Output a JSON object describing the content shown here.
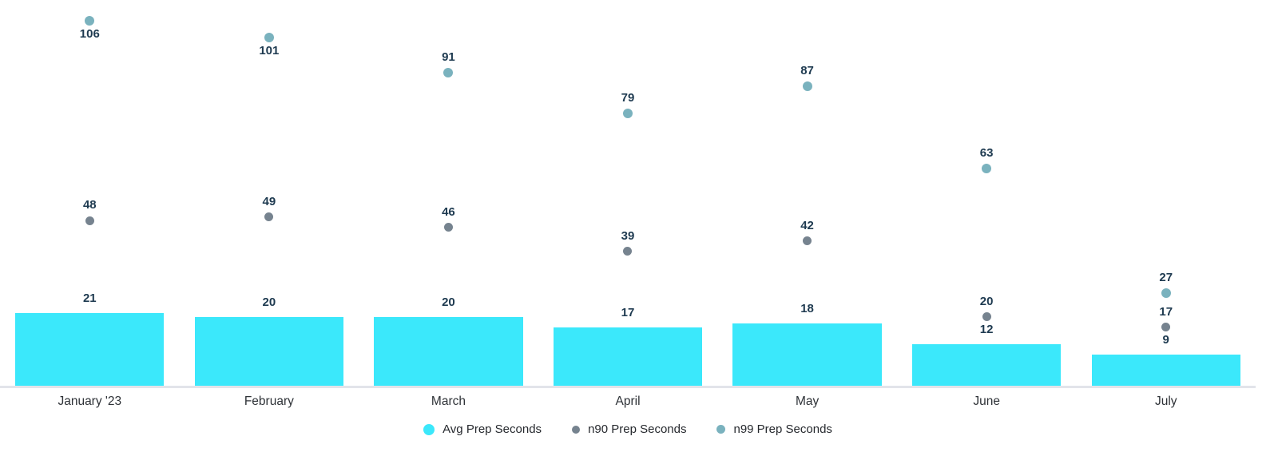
{
  "chart_data": {
    "type": "bar",
    "subtype": "combo-bar-and-scatter",
    "title": "",
    "xlabel": "",
    "ylabel": "",
    "categories": [
      "January '23",
      "February",
      "March",
      "April",
      "May",
      "June",
      "July"
    ],
    "series": [
      {
        "name": "Avg Prep Seconds",
        "mark": "bar",
        "color": "#3BE8FB",
        "values": [
          21,
          20,
          20,
          17,
          18,
          12,
          9
        ]
      },
      {
        "name": "n90 Prep Seconds",
        "mark": "point",
        "color": "#76838F",
        "values": [
          48,
          49,
          46,
          39,
          42,
          20,
          17
        ]
      },
      {
        "name": "n99 Prep Seconds",
        "mark": "point",
        "color": "#7AB2BE",
        "values": [
          106,
          101,
          91,
          79,
          87,
          63,
          27
        ],
        "value_label_below_point": [
          true,
          true,
          false,
          false,
          false,
          false,
          false
        ]
      }
    ],
    "ylim": [
      0,
      112
    ],
    "grid": false,
    "y_axis_visible": false,
    "data_labels_visible": true,
    "legend_position": "bottom-center",
    "colors": {
      "value_label": "#1E3A50",
      "category_label": "#2E3237",
      "legend_label": "#26292E",
      "axis_line": "#E2E4EA",
      "background": "#FFFFFF"
    }
  }
}
